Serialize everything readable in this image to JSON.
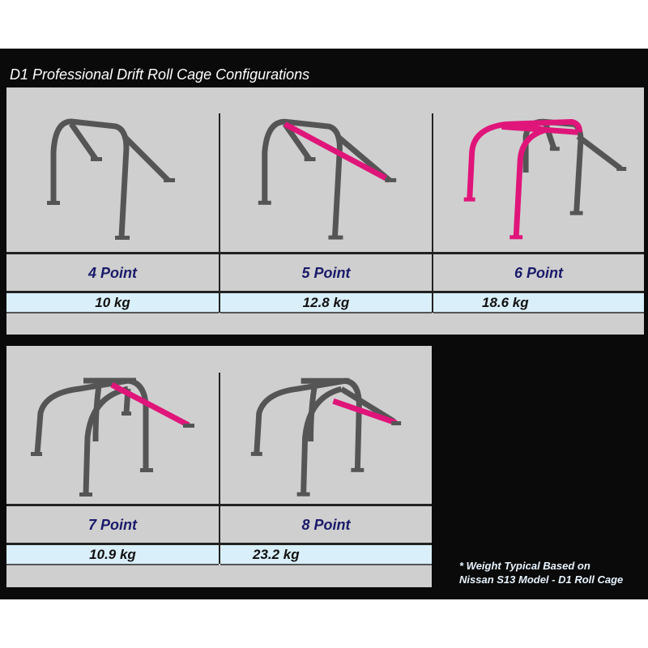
{
  "title": "D1 Professional Drift Roll Cage Configurations",
  "configs": [
    {
      "name": "4 Point",
      "weight": "10 kg"
    },
    {
      "name": "5 Point",
      "weight": "12.8 kg"
    },
    {
      "name": "6 Point",
      "weight": "18.6 kg"
    },
    {
      "name": "7 Point",
      "weight": "10.9 kg"
    },
    {
      "name": "8 Point",
      "weight": "23.2 kg"
    }
  ],
  "footnote": {
    "line1": "* Weight Typical Based on",
    "line2": "Nissan S13 Model - D1 Roll Cage"
  },
  "colors": {
    "tube": "#555555",
    "highlight": "#e0157a",
    "label": "#1a1a6a",
    "weight_row": "#d9eff9",
    "panel": "#cfcfcf"
  }
}
